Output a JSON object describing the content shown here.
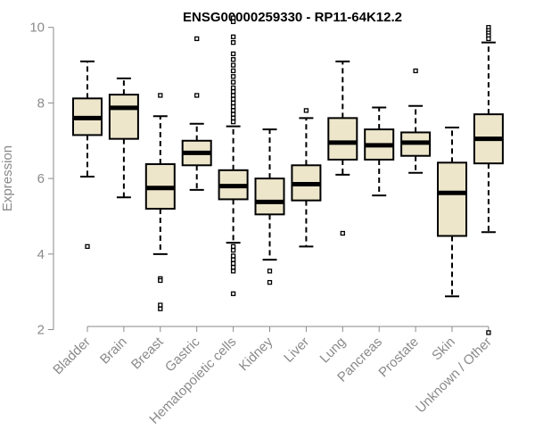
{
  "chart_data": {
    "type": "boxplot",
    "title": "ENSG00000259330 - RP11-64K12.2",
    "xlabel": "",
    "ylabel": "Expression",
    "ylim": [
      1.8,
      10.3
    ],
    "yticks": [
      2,
      4,
      6,
      8,
      10
    ],
    "box_fill": "#ede6cb",
    "categories": [
      "Bladder",
      "Brain",
      "Breast",
      "Gastric",
      "Hematopoietic cells",
      "Kidney",
      "Liver",
      "Lung",
      "Pancreas",
      "Prostate",
      "Skin",
      "Unknown / Other"
    ],
    "boxes": [
      {
        "name": "Bladder",
        "whisker_low": 6.05,
        "q1": 7.15,
        "median": 7.6,
        "q3": 8.12,
        "whisker_high": 9.1,
        "outliers": [
          4.2
        ]
      },
      {
        "name": "Brain",
        "whisker_low": 5.5,
        "q1": 7.05,
        "median": 7.87,
        "q3": 8.22,
        "whisker_high": 8.65,
        "outliers": []
      },
      {
        "name": "Breast",
        "whisker_low": 4.0,
        "q1": 5.2,
        "median": 5.75,
        "q3": 6.38,
        "whisker_high": 7.65,
        "outliers": [
          8.2,
          3.35,
          3.3,
          2.65,
          2.55
        ]
      },
      {
        "name": "Gastric",
        "whisker_low": 5.7,
        "q1": 6.35,
        "median": 6.68,
        "q3": 7.0,
        "whisker_high": 7.45,
        "outliers": [
          9.7,
          8.2
        ]
      },
      {
        "name": "Hematopoietic cells",
        "whisker_low": 4.3,
        "q1": 5.45,
        "median": 5.8,
        "q3": 6.22,
        "whisker_high": 7.38,
        "outliers": [
          10.25,
          10.15,
          9.75,
          9.6,
          9.3,
          9.15,
          9.0,
          8.85,
          8.7,
          8.55,
          8.4,
          8.3,
          8.2,
          8.1,
          8.0,
          7.9,
          7.8,
          7.7,
          7.6,
          7.5,
          4.2,
          4.1,
          3.95,
          3.85,
          3.75,
          3.65,
          3.55,
          2.95
        ]
      },
      {
        "name": "Kidney",
        "whisker_low": 3.85,
        "q1": 5.05,
        "median": 5.38,
        "q3": 6.0,
        "whisker_high": 7.3,
        "outliers": [
          3.55,
          3.25
        ]
      },
      {
        "name": "Liver",
        "whisker_low": 4.2,
        "q1": 5.42,
        "median": 5.85,
        "q3": 6.35,
        "whisker_high": 7.6,
        "outliers": [
          7.8
        ]
      },
      {
        "name": "Lung",
        "whisker_low": 6.1,
        "q1": 6.5,
        "median": 6.95,
        "q3": 7.6,
        "whisker_high": 9.1,
        "outliers": [
          4.55
        ]
      },
      {
        "name": "Pancreas",
        "whisker_low": 5.55,
        "q1": 6.5,
        "median": 6.88,
        "q3": 7.3,
        "whisker_high": 7.88,
        "outliers": []
      },
      {
        "name": "Prostate",
        "whisker_low": 6.15,
        "q1": 6.6,
        "median": 6.95,
        "q3": 7.22,
        "whisker_high": 7.92,
        "outliers": [
          8.85
        ]
      },
      {
        "name": "Skin",
        "whisker_low": 2.88,
        "q1": 4.48,
        "median": 5.62,
        "q3": 6.42,
        "whisker_high": 7.35,
        "outliers": []
      },
      {
        "name": "Unknown / Other",
        "whisker_low": 4.58,
        "q1": 6.4,
        "median": 7.05,
        "q3": 7.7,
        "whisker_high": 9.6,
        "outliers": [
          10.0,
          9.92,
          9.85,
          9.78,
          9.7,
          1.92
        ]
      }
    ]
  }
}
